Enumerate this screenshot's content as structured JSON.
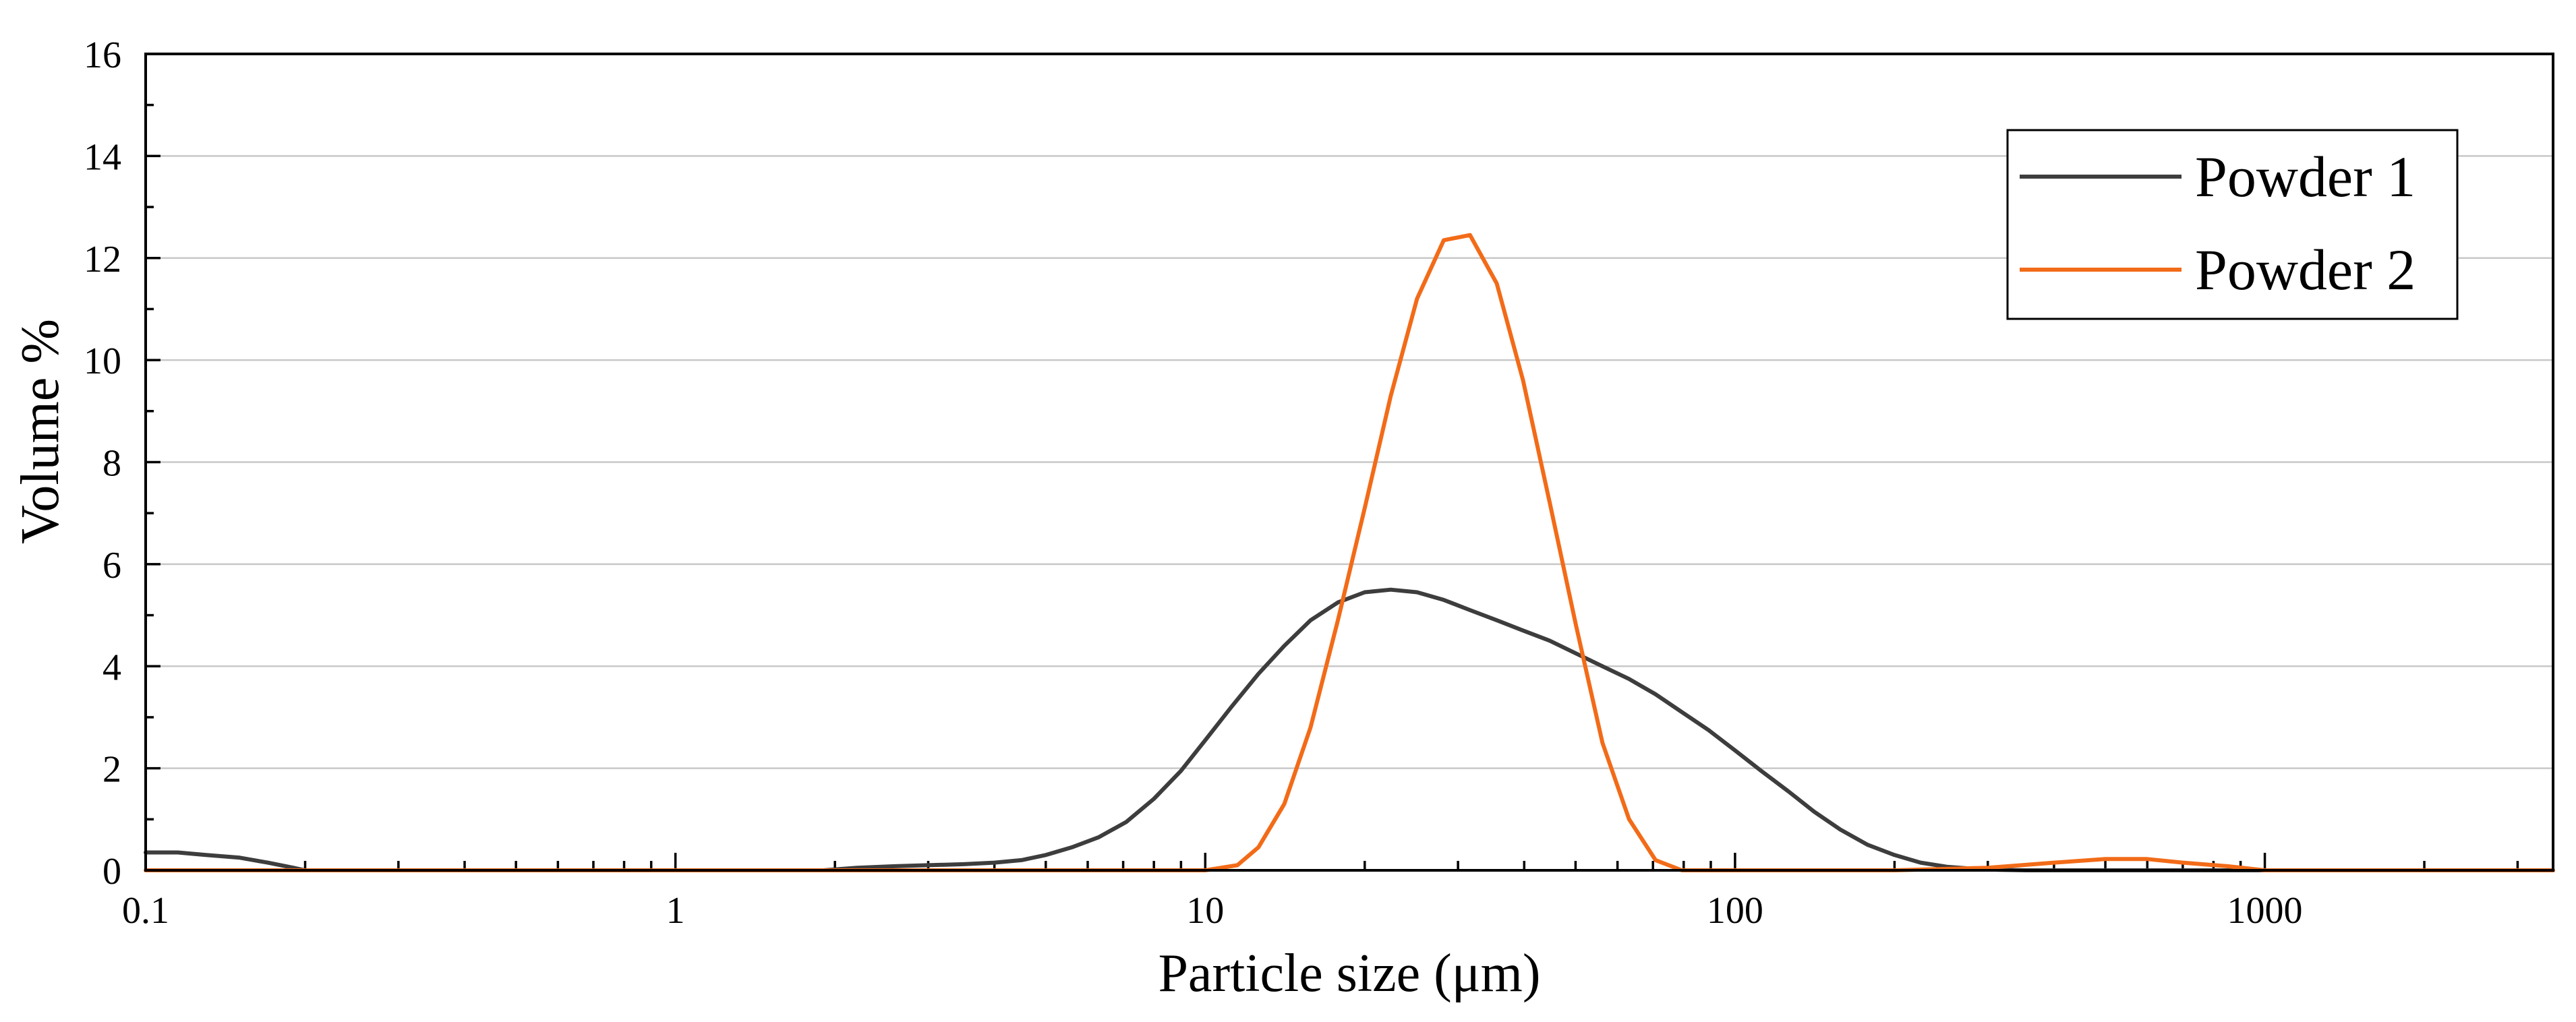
{
  "chart_data": {
    "type": "line",
    "title": "",
    "xlabel": "Particle size (μm)",
    "ylabel": "Volume %",
    "xscale": "log",
    "xlim": [
      0.1,
      3500
    ],
    "ylim": [
      0,
      16
    ],
    "xticks": [
      {
        "value": 0.1,
        "label": "0.1"
      },
      {
        "value": 1,
        "label": "1"
      },
      {
        "value": 10,
        "label": "10"
      },
      {
        "value": 100,
        "label": "100"
      },
      {
        "value": 1000,
        "label": "1000"
      }
    ],
    "yticks": [
      {
        "value": 0,
        "label": "0"
      },
      {
        "value": 2,
        "label": "2"
      },
      {
        "value": 4,
        "label": "4"
      },
      {
        "value": 6,
        "label": "6"
      },
      {
        "value": 8,
        "label": "8"
      },
      {
        "value": 10,
        "label": "10"
      },
      {
        "value": 12,
        "label": "12"
      },
      {
        "value": 14,
        "label": "14"
      },
      {
        "value": 16,
        "label": "16"
      }
    ],
    "grid": true,
    "legend_position": "top-right",
    "series": [
      {
        "name": "Powder 1",
        "color": "#3d3d3d",
        "x": [
          0.1,
          0.115,
          0.13,
          0.15,
          0.17,
          0.19,
          0.2,
          0.5,
          1.0,
          1.9,
          2.2,
          2.6,
          3.0,
          3.5,
          4.0,
          4.5,
          5.0,
          5.6,
          6.3,
          7.1,
          8.0,
          9.0,
          10.0,
          11.2,
          12.6,
          14.1,
          15.8,
          17.8,
          20.0,
          22.4,
          25.1,
          28.2,
          31.6,
          35.5,
          39.8,
          44.7,
          50.1,
          56.2,
          63.1,
          70.8,
          79.4,
          89.1,
          100,
          112,
          126,
          141,
          158,
          178,
          200,
          224,
          251,
          282,
          316,
          355,
          400,
          500,
          1000,
          3500
        ],
        "y": [
          0.35,
          0.35,
          0.3,
          0.25,
          0.15,
          0.05,
          0.0,
          0.0,
          0.0,
          0.0,
          0.05,
          0.08,
          0.1,
          0.12,
          0.15,
          0.2,
          0.3,
          0.45,
          0.65,
          0.95,
          1.4,
          1.95,
          2.55,
          3.2,
          3.85,
          4.4,
          4.9,
          5.25,
          5.45,
          5.5,
          5.45,
          5.3,
          5.1,
          4.9,
          4.7,
          4.5,
          4.25,
          4.0,
          3.75,
          3.45,
          3.1,
          2.75,
          2.35,
          1.95,
          1.55,
          1.15,
          0.8,
          0.5,
          0.3,
          0.15,
          0.07,
          0.03,
          0.01,
          0.0,
          0.0,
          0.0,
          0.0,
          0.0
        ]
      },
      {
        "name": "Powder 2",
        "color": "#f26b18",
        "x": [
          0.1,
          1.0,
          10.0,
          11.5,
          12.6,
          14.1,
          15.8,
          17.8,
          20.0,
          22.4,
          25.1,
          28.2,
          31.6,
          35.5,
          39.8,
          44.7,
          50.1,
          56.2,
          63.1,
          70.8,
          79.4,
          89.1,
          100,
          200,
          300,
          400,
          500,
          600,
          700,
          850,
          1000,
          3500
        ],
        "y": [
          0.0,
          0.0,
          0.0,
          0.1,
          0.45,
          1.3,
          2.8,
          4.9,
          7.1,
          9.3,
          11.2,
          12.35,
          12.45,
          11.5,
          9.6,
          7.2,
          4.8,
          2.5,
          1.0,
          0.2,
          0.0,
          0.0,
          0.0,
          0.0,
          0.05,
          0.15,
          0.22,
          0.22,
          0.15,
          0.08,
          0.0,
          0.0
        ]
      }
    ]
  }
}
